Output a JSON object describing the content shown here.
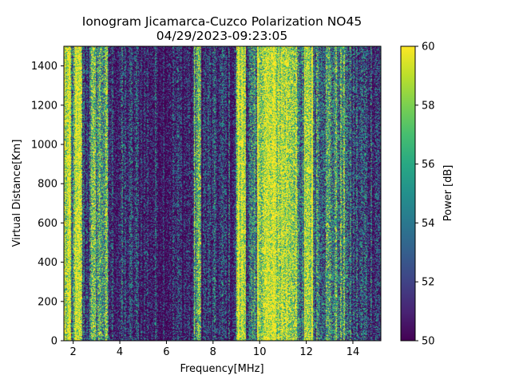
{
  "chart_data": {
    "type": "heatmap",
    "title_line1": "Ionogram Jicamarca-Cuzco Polarization NO45",
    "title_line2": "04/29/2023-09:23:05",
    "xlabel": "Frequency[MHz]",
    "ylabel": "Virtual Distance[Km]",
    "xlim": [
      1.6,
      15.2
    ],
    "ylim": [
      0,
      1500
    ],
    "xticks": [
      2,
      4,
      6,
      8,
      10,
      12,
      14
    ],
    "xtick_labels": [
      "2",
      "4",
      "6",
      "8",
      "10",
      "12",
      "14"
    ],
    "yticks": [
      0,
      200,
      400,
      600,
      800,
      1000,
      1200,
      1400
    ],
    "ytick_labels": [
      "0",
      "200",
      "400",
      "600",
      "800",
      "1000",
      "1200",
      "1400"
    ],
    "colorbar": {
      "label": "Power [dB]",
      "range": [
        50,
        60
      ],
      "ticks": [
        50,
        52,
        54,
        56,
        58,
        60
      ],
      "tick_labels": [
        "50",
        "52",
        "54",
        "56",
        "58",
        "60"
      ],
      "colormap": "viridis"
    },
    "column_profile": {
      "description_units": "frequency MHz -> typical power level dB",
      "bands": [
        {
          "from": 1.6,
          "to": 1.9,
          "level": 59
        },
        {
          "from": 1.9,
          "to": 2.0,
          "level": 53
        },
        {
          "from": 2.0,
          "to": 2.4,
          "level": 59
        },
        {
          "from": 2.4,
          "to": 2.7,
          "level": 52
        },
        {
          "from": 2.7,
          "to": 3.5,
          "level": 56
        },
        {
          "from": 3.5,
          "to": 5.0,
          "level": 51
        },
        {
          "from": 5.0,
          "to": 7.2,
          "level": 50.5
        },
        {
          "from": 7.2,
          "to": 7.5,
          "level": 56
        },
        {
          "from": 7.5,
          "to": 9.0,
          "level": 51
        },
        {
          "from": 9.0,
          "to": 9.4,
          "level": 59.5
        },
        {
          "from": 9.4,
          "to": 9.9,
          "level": 53
        },
        {
          "from": 9.9,
          "to": 11.6,
          "level": 59.5
        },
        {
          "from": 11.6,
          "to": 11.9,
          "level": 53
        },
        {
          "from": 11.9,
          "to": 12.3,
          "level": 59.5
        },
        {
          "from": 12.3,
          "to": 13.8,
          "level": 55
        },
        {
          "from": 13.8,
          "to": 15.2,
          "level": 52
        }
      ]
    }
  }
}
